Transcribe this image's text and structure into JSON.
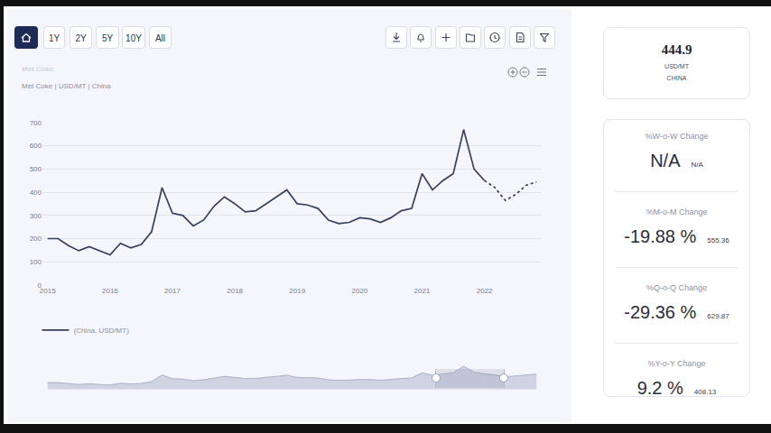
{
  "chart_data": {
    "type": "line",
    "title": "Met Coke",
    "subtitle": "Met Coke | USD/MT | China",
    "categories": [
      "2015",
      null,
      null,
      null,
      null,
      null,
      "2016",
      null,
      null,
      null,
      null,
      null,
      "2017",
      null,
      null,
      null,
      null,
      null,
      "2018",
      null,
      null,
      null,
      null,
      null,
      "2019",
      null,
      null,
      null,
      null,
      null,
      "2020",
      null,
      null,
      null,
      null,
      null,
      "2021",
      null,
      null,
      null,
      null,
      null,
      "2022",
      null,
      null,
      null,
      null,
      null
    ],
    "series": [
      {
        "name": "(China, USD/MT)",
        "color": "#36405f",
        "line_style": "solid",
        "values": [
          200,
          200,
          170,
          148,
          165,
          148,
          130,
          180,
          160,
          175,
          230,
          420,
          310,
          300,
          255,
          280,
          340,
          380,
          350,
          315,
          320,
          350,
          380,
          410,
          350,
          345,
          330,
          280,
          265,
          270,
          290,
          285,
          270,
          290,
          320,
          330,
          480,
          410,
          450,
          480,
          670,
          500,
          450,
          null,
          null,
          null,
          null,
          null
        ]
      },
      {
        "color": "#36405f",
        "line_style": "dot",
        "values": [
          null,
          null,
          null,
          null,
          null,
          null,
          null,
          null,
          null,
          null,
          null,
          null,
          null,
          null,
          null,
          null,
          null,
          null,
          null,
          null,
          null,
          null,
          null,
          null,
          null,
          null,
          null,
          null,
          null,
          null,
          null,
          null,
          null,
          null,
          null,
          null,
          null,
          null,
          null,
          null,
          null,
          null,
          450,
          420,
          365,
          390,
          430,
          445
        ]
      }
    ],
    "ylim": [
      0,
      700
    ],
    "yticks": [
      0,
      100,
      200,
      300,
      400,
      500,
      600,
      700
    ],
    "grid": true,
    "legend": "bottom"
  },
  "header": {
    "buttons": [
      "1Y",
      "2Y",
      "5Y",
      "10Y",
      "All"
    ]
  },
  "panel": {
    "price": {
      "value": "444.9",
      "unit": "USD/MT",
      "region": "CHINA"
    },
    "changes": [
      {
        "label": "%W-o-W Change",
        "change": "N/A",
        "base": "N/A"
      },
      {
        "label": "%M-o-M Change",
        "change": "-19.88 %",
        "base": "555.36"
      },
      {
        "label": "%Q-o-Q Change",
        "change": "-29.36 %",
        "base": "629.87"
      },
      {
        "label": "%Y-o-Y Change",
        "change": "9.2 %",
        "base": "408.13"
      }
    ]
  }
}
